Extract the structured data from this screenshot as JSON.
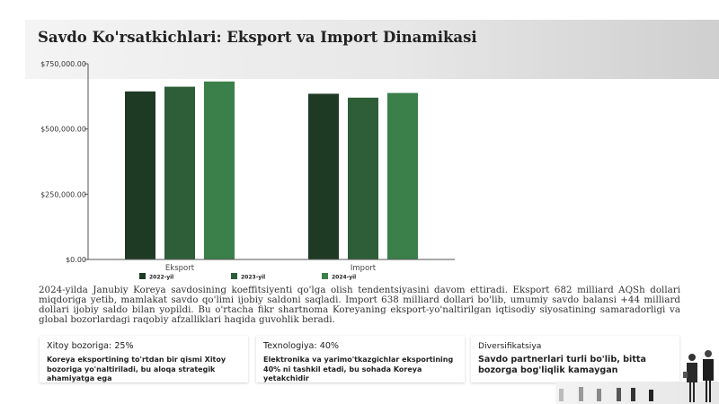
{
  "title": "Savdo Ko'rsatkichlari: Eksport va Import Dinamikasi",
  "chart_data": {
    "type": "bar",
    "categories": [
      "Eksport",
      "Import"
    ],
    "series": [
      {
        "name": "2022-yil",
        "color": "#1e3a24",
        "values": [
          644000,
          635000
        ]
      },
      {
        "name": "2023-yil",
        "color": "#2d5e38",
        "values": [
          662000,
          620000
        ]
      },
      {
        "name": "2024-yil",
        "color": "#3b7f4b",
        "values": [
          682000,
          638000
        ]
      }
    ],
    "ylim": [
      0,
      750000
    ],
    "yticks": [
      0,
      250000,
      500000,
      750000
    ],
    "ytick_labels": [
      "$0.00",
      "$250,000.00",
      "$500,000.00",
      "$750,000.00"
    ],
    "legend_position": "bottom",
    "grid": false
  },
  "summary": "2024-yilda Janubiy Koreya savdosining koeffitsiyenti qo'lga olish tendentsiyasini davom ettiradi. Eksport 682 milliard AQSh dollari miqdoriga yetib, mamlakat savdo qo'limi ijobiy saldoni saqladi. Import 638 milliard dollari bo'lib, umumiy savdo balansi +44 milliard dollari ijobiy saldo bilan yopildi. Bu o'rtacha fikr shartnoma Koreyaning eksport-yo'naltirilgan iqtisodiy siyosatining samaradorligi va global bozorlardagi raqobiy afzalliklari haqida guvohlik beradi.",
  "cards": [
    {
      "title": "Xitoy bozoriga: 25%",
      "text": "Koreya eksportining to'rtdan bir qismi Xitoy bozoriga yo'naltiriladi, bu aloqa strategik ahamiyatga ega"
    },
    {
      "title": "Texnologiya: 40%",
      "text": "Elektronika va yarimo'tkazgichlar eksportining 40% ni tashkil etadi, bu sohada Koreya yetakchidir"
    },
    {
      "title": "Diversifikatsiya",
      "text": "Savdo partnerlari turli bo'lib, bitta bozorga bog'liqlik kamaygan"
    }
  ]
}
